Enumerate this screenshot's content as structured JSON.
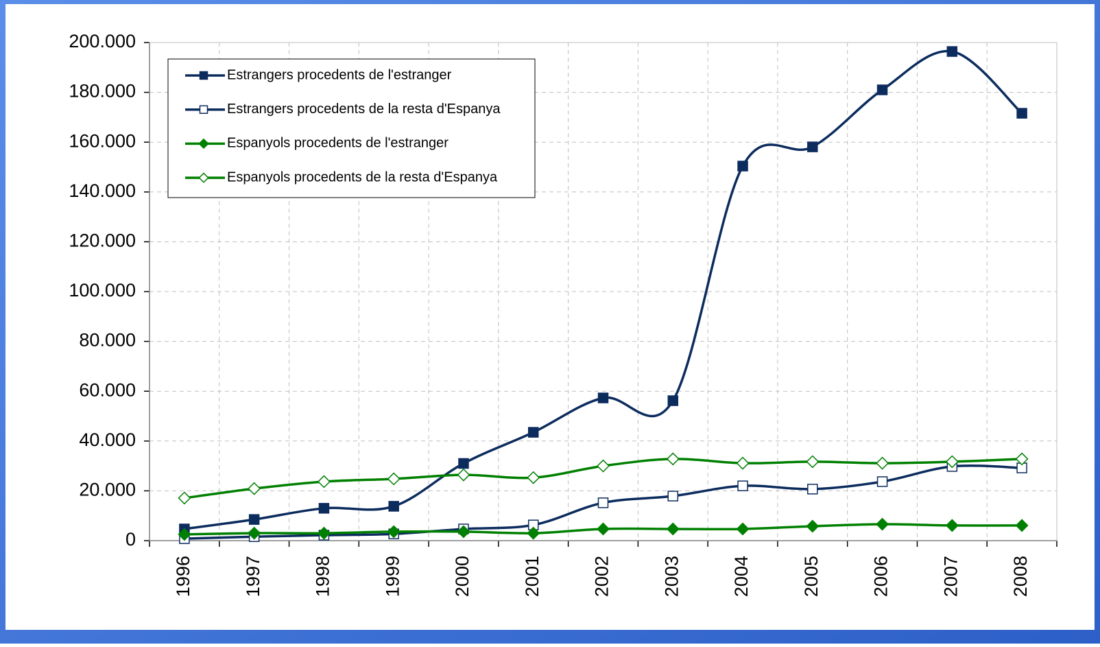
{
  "chart_data": {
    "type": "line",
    "categories": [
      "1996",
      "1997",
      "1998",
      "1999",
      "2000",
      "2001",
      "2002",
      "2003",
      "2004",
      "2005",
      "2006",
      "2007",
      "2008"
    ],
    "series": [
      {
        "name": "Estrangers procedents de l'estranger",
        "color": "#0c2c5e",
        "marker": "square",
        "filled": true,
        "values": [
          4700,
          8500,
          13000,
          13800,
          31000,
          43500,
          57300,
          56200,
          150400,
          158100,
          181000,
          196400,
          171600
        ]
      },
      {
        "name": "Estrangers procedents de la resta d'Espanya",
        "color": "#0c2c5e",
        "marker": "square",
        "filled": false,
        "values": [
          800,
          1600,
          2200,
          2700,
          4700,
          6300,
          15200,
          17900,
          22000,
          20700,
          23700,
          29800,
          29200
        ]
      },
      {
        "name": "Espanyols procedents de l'estranger",
        "color": "#008000",
        "marker": "diamond",
        "filled": true,
        "values": [
          2500,
          3000,
          3000,
          3600,
          3600,
          3000,
          4700,
          4700,
          4700,
          5800,
          6600,
          6100,
          6100
        ]
      },
      {
        "name": "Espanyols procedents de la resta d'Espanya",
        "color": "#008000",
        "marker": "diamond",
        "filled": false,
        "values": [
          17100,
          20900,
          23700,
          24800,
          26400,
          25300,
          30000,
          32800,
          31100,
          31700,
          31100,
          31700,
          32800
        ]
      }
    ],
    "ylim": [
      0,
      200000
    ],
    "yticks": [
      0,
      {
        "value": 20000,
        "label": "20.000"
      },
      {
        "value": 40000,
        "label": "40.000"
      },
      {
        "value": 60000,
        "label": "60.000"
      },
      {
        "value": 80000,
        "label": "80.000"
      },
      {
        "value": 100000,
        "label": "100.000"
      },
      {
        "value": 120000,
        "label": "120.000"
      },
      {
        "value": 140000,
        "label": "140.000"
      },
      {
        "value": 160000,
        "label": "160.000"
      },
      {
        "value": 180000,
        "label": "180.000"
      },
      {
        "value": 200000,
        "label": "200.000"
      }
    ],
    "grid": true,
    "smooth": true,
    "legend": "upper left"
  }
}
